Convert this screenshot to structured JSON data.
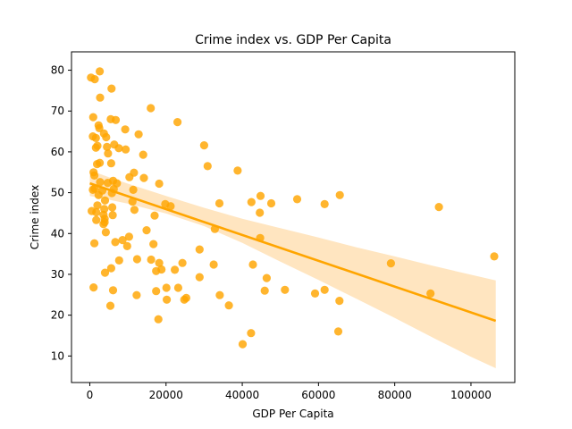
{
  "chart_data": {
    "type": "scatter",
    "title": "Crime index vs. GDP Per Capita",
    "xlabel": "GDP Per Capita",
    "ylabel": "Crime index",
    "xlim": [
      -4800,
      111500
    ],
    "ylim": [
      3.5,
      84.5
    ],
    "x_ticks": [
      0,
      20000,
      40000,
      60000,
      80000,
      100000
    ],
    "x_tick_labels": [
      "0",
      "20000",
      "40000",
      "60000",
      "80000",
      "100000"
    ],
    "y_ticks": [
      10,
      20,
      30,
      40,
      50,
      60,
      70,
      80
    ],
    "y_tick_labels": [
      "10",
      "20",
      "30",
      "40",
      "50",
      "60",
      "70",
      "80"
    ],
    "grid": false,
    "legend": "none",
    "point_color": "#FFA500",
    "line_color": "#FFA500",
    "band_color": "#FFE5C0",
    "regression": {
      "x": [
        0,
        106500
      ],
      "y": [
        52.3,
        18.6
      ]
    },
    "confidence_band": {
      "x": [
        0,
        5000,
        10000,
        20000,
        30000,
        40000,
        50000,
        60000,
        70000,
        80000,
        90000,
        100000,
        106500
      ],
      "lower": [
        49.2,
        48.3,
        47.3,
        44.9,
        41.8,
        37.7,
        33.1,
        28.6,
        24.0,
        19.3,
        14.5,
        9.8,
        7.0
      ],
      "upper": [
        55.5,
        53.8,
        52.2,
        49.2,
        46.3,
        43.6,
        41.3,
        39.0,
        36.6,
        34.4,
        32.1,
        29.9,
        28.5
      ]
    },
    "points": [
      {
        "x": 300,
        "y": 78.2
      },
      {
        "x": 1300,
        "y": 77.8
      },
      {
        "x": 2600,
        "y": 79.7
      },
      {
        "x": 5700,
        "y": 75.5
      },
      {
        "x": 2700,
        "y": 73.3
      },
      {
        "x": 16000,
        "y": 70.7
      },
      {
        "x": 900,
        "y": 68.5
      },
      {
        "x": 5500,
        "y": 68.0
      },
      {
        "x": 6800,
        "y": 67.8
      },
      {
        "x": 23000,
        "y": 67.3
      },
      {
        "x": 2300,
        "y": 66.5
      },
      {
        "x": 2500,
        "y": 65.8
      },
      {
        "x": 9300,
        "y": 65.5
      },
      {
        "x": 3700,
        "y": 64.5
      },
      {
        "x": 12800,
        "y": 64.3
      },
      {
        "x": 800,
        "y": 63.8
      },
      {
        "x": 4300,
        "y": 63.6
      },
      {
        "x": 1600,
        "y": 63.4
      },
      {
        "x": 30000,
        "y": 61.6
      },
      {
        "x": 6400,
        "y": 61.8
      },
      {
        "x": 4500,
        "y": 61.2
      },
      {
        "x": 1600,
        "y": 61.0
      },
      {
        "x": 7600,
        "y": 60.9
      },
      {
        "x": 9400,
        "y": 60.6
      },
      {
        "x": 2000,
        "y": 61.5
      },
      {
        "x": 4800,
        "y": 59.6
      },
      {
        "x": 14000,
        "y": 59.3
      },
      {
        "x": 1900,
        "y": 57.0
      },
      {
        "x": 2600,
        "y": 57.3
      },
      {
        "x": 5600,
        "y": 57.2
      },
      {
        "x": 30900,
        "y": 56.5
      },
      {
        "x": 38800,
        "y": 55.4
      },
      {
        "x": 1000,
        "y": 55.0
      },
      {
        "x": 11600,
        "y": 54.9
      },
      {
        "x": 10400,
        "y": 53.8
      },
      {
        "x": 1200,
        "y": 54.2
      },
      {
        "x": 14200,
        "y": 53.6
      },
      {
        "x": 6100,
        "y": 52.9
      },
      {
        "x": 2700,
        "y": 52.6
      },
      {
        "x": 4700,
        "y": 52.4
      },
      {
        "x": 7100,
        "y": 52.3
      },
      {
        "x": 18200,
        "y": 52.2
      },
      {
        "x": 1300,
        "y": 51.0
      },
      {
        "x": 6300,
        "y": 50.9
      },
      {
        "x": 11400,
        "y": 50.7
      },
      {
        "x": 800,
        "y": 50.7
      },
      {
        "x": 3300,
        "y": 50.5
      },
      {
        "x": 5800,
        "y": 49.9
      },
      {
        "x": 2300,
        "y": 49.4
      },
      {
        "x": 44800,
        "y": 49.2
      },
      {
        "x": 65600,
        "y": 49.4
      },
      {
        "x": 54400,
        "y": 48.4
      },
      {
        "x": 4000,
        "y": 48.1
      },
      {
        "x": 11200,
        "y": 47.8
      },
      {
        "x": 42400,
        "y": 47.7
      },
      {
        "x": 34000,
        "y": 47.4
      },
      {
        "x": 47600,
        "y": 47.4
      },
      {
        "x": 61600,
        "y": 47.2
      },
      {
        "x": 19800,
        "y": 47.2
      },
      {
        "x": 21200,
        "y": 46.7
      },
      {
        "x": 91600,
        "y": 46.5
      },
      {
        "x": 2000,
        "y": 46.9
      },
      {
        "x": 5900,
        "y": 46.4
      },
      {
        "x": 3800,
        "y": 46.0
      },
      {
        "x": 11700,
        "y": 45.8
      },
      {
        "x": 500,
        "y": 45.5
      },
      {
        "x": 1700,
        "y": 45.2
      },
      {
        "x": 44600,
        "y": 45.1
      },
      {
        "x": 3600,
        "y": 44.6
      },
      {
        "x": 6000,
        "y": 44.5
      },
      {
        "x": 17000,
        "y": 44.4
      },
      {
        "x": 3900,
        "y": 43.6
      },
      {
        "x": 1700,
        "y": 43.3
      },
      {
        "x": 3900,
        "y": 42.8
      },
      {
        "x": 3600,
        "y": 42.3
      },
      {
        "x": 32800,
        "y": 41.1
      },
      {
        "x": 14900,
        "y": 40.8
      },
      {
        "x": 4200,
        "y": 40.3
      },
      {
        "x": 10300,
        "y": 39.2
      },
      {
        "x": 44700,
        "y": 38.9
      },
      {
        "x": 8600,
        "y": 38.4
      },
      {
        "x": 6700,
        "y": 37.9
      },
      {
        "x": 1200,
        "y": 37.6
      },
      {
        "x": 16700,
        "y": 37.4
      },
      {
        "x": 9800,
        "y": 36.9
      },
      {
        "x": 28800,
        "y": 36.1
      },
      {
        "x": 7700,
        "y": 33.4
      },
      {
        "x": 12400,
        "y": 33.7
      },
      {
        "x": 16100,
        "y": 33.6
      },
      {
        "x": 18200,
        "y": 32.8
      },
      {
        "x": 24300,
        "y": 32.8
      },
      {
        "x": 32500,
        "y": 32.4
      },
      {
        "x": 42800,
        "y": 32.4
      },
      {
        "x": 79000,
        "y": 32.7
      },
      {
        "x": 106100,
        "y": 34.4
      },
      {
        "x": 5600,
        "y": 31.5
      },
      {
        "x": 18800,
        "y": 31.2
      },
      {
        "x": 22300,
        "y": 31.1
      },
      {
        "x": 17400,
        "y": 30.8
      },
      {
        "x": 4000,
        "y": 30.4
      },
      {
        "x": 28800,
        "y": 29.3
      },
      {
        "x": 46400,
        "y": 29.1
      },
      {
        "x": 1000,
        "y": 26.8
      },
      {
        "x": 20100,
        "y": 26.7
      },
      {
        "x": 23200,
        "y": 26.7
      },
      {
        "x": 6100,
        "y": 26.1
      },
      {
        "x": 17400,
        "y": 25.9
      },
      {
        "x": 45900,
        "y": 26.0
      },
      {
        "x": 51200,
        "y": 26.2
      },
      {
        "x": 61600,
        "y": 26.2
      },
      {
        "x": 59100,
        "y": 25.3
      },
      {
        "x": 89400,
        "y": 25.3
      },
      {
        "x": 12300,
        "y": 24.9
      },
      {
        "x": 34100,
        "y": 24.9
      },
      {
        "x": 25300,
        "y": 24.2
      },
      {
        "x": 24800,
        "y": 23.8
      },
      {
        "x": 20200,
        "y": 23.8
      },
      {
        "x": 65500,
        "y": 23.5
      },
      {
        "x": 5400,
        "y": 22.3
      },
      {
        "x": 36500,
        "y": 22.4
      },
      {
        "x": 18000,
        "y": 19.0
      },
      {
        "x": 42300,
        "y": 15.6
      },
      {
        "x": 65200,
        "y": 16.0
      },
      {
        "x": 40100,
        "y": 12.9
      }
    ]
  }
}
